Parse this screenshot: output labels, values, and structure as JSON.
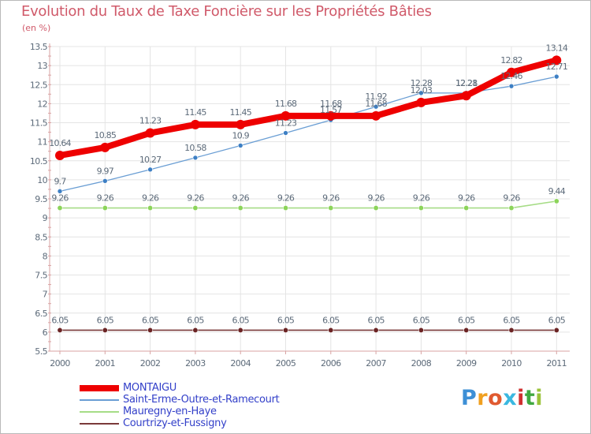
{
  "header": {
    "title": "Evolution du Taux de Taxe Foncière sur les Propriétés Bâties",
    "unit": "(en %)"
  },
  "colors": {
    "title": "#d05a6a",
    "axis": "#d9a3a3",
    "grid": "#e4e4e4",
    "tick_text": "#5d6b7a",
    "legend_text": "#3340c9"
  },
  "chart_data": {
    "type": "line",
    "title": "Evolution du Taux de Taxe Foncière sur les Propriétés Bâties",
    "ylabel": "(en %)",
    "xlabel": "",
    "categories": [
      "2000",
      "2001",
      "2002",
      "2003",
      "2004",
      "2005",
      "2006",
      "2007",
      "2008",
      "2009",
      "2010",
      "2011"
    ],
    "yticks": [
      "5.5",
      "6",
      "6.5",
      "7",
      "7.5",
      "8",
      "8.5",
      "9",
      "9.5",
      "10",
      "10.5",
      "11",
      "11.5",
      "12",
      "12.5",
      "13",
      "13.5"
    ],
    "ylim": [
      5.5,
      13.5
    ],
    "grid": true,
    "legend_position": "bottom-left",
    "series": [
      {
        "name": "MONTAIGU",
        "color": "#ee0000",
        "values": [
          10.64,
          10.85,
          11.23,
          11.45,
          11.45,
          11.68,
          11.68,
          11.68,
          12.03,
          12.21,
          12.82,
          13.14
        ],
        "labels": [
          "10.64",
          "10.85",
          "11.23",
          "11.45",
          "11.45",
          "11.68",
          "11.68",
          "11.68",
          "12.03",
          "12.21",
          "12.82",
          "13.14"
        ]
      },
      {
        "name": "Saint-Erme-Outre-et-Ramecourt",
        "color": "#6a9ed4",
        "values": [
          9.7,
          9.97,
          10.27,
          10.58,
          10.9,
          11.23,
          11.57,
          11.92,
          12.28,
          12.28,
          12.46,
          12.71
        ],
        "labels": [
          "9.7",
          "9.97",
          "10.27",
          "10.58",
          "10.9",
          "11.23",
          "11.57",
          "11.92",
          "12.28",
          "12.28",
          "12.46",
          "12.71"
        ]
      },
      {
        "name": "Mauregny-en-Haye",
        "color": "#a6dc86",
        "values": [
          9.26,
          9.26,
          9.26,
          9.26,
          9.26,
          9.26,
          9.26,
          9.26,
          9.26,
          9.26,
          9.26,
          9.44
        ],
        "labels": [
          "9.26",
          "9.26",
          "9.26",
          "9.26",
          "9.26",
          "9.26",
          "9.26",
          "9.26",
          "9.26",
          "9.26",
          "9.26",
          "9.44"
        ]
      },
      {
        "name": "Courtrizy-et-Fussigny",
        "color": "#7a3a3a",
        "values": [
          6.05,
          6.05,
          6.05,
          6.05,
          6.05,
          6.05,
          6.05,
          6.05,
          6.05,
          6.05,
          6.05,
          6.05
        ],
        "labels": [
          "6.05",
          "6.05",
          "6.05",
          "6.05",
          "6.05",
          "6.05",
          "6.05",
          "6.05",
          "6.05",
          "6.05",
          "6.05",
          "6.05"
        ]
      }
    ]
  },
  "logo": {
    "letters": [
      "P",
      "r",
      "o",
      "x",
      "i",
      "t",
      "i"
    ],
    "colors": [
      "#3d8fd6",
      "#f0a020",
      "#e05a30",
      "#3ab8e0",
      "#d03030",
      "#40a840",
      "#9ac33a"
    ]
  }
}
